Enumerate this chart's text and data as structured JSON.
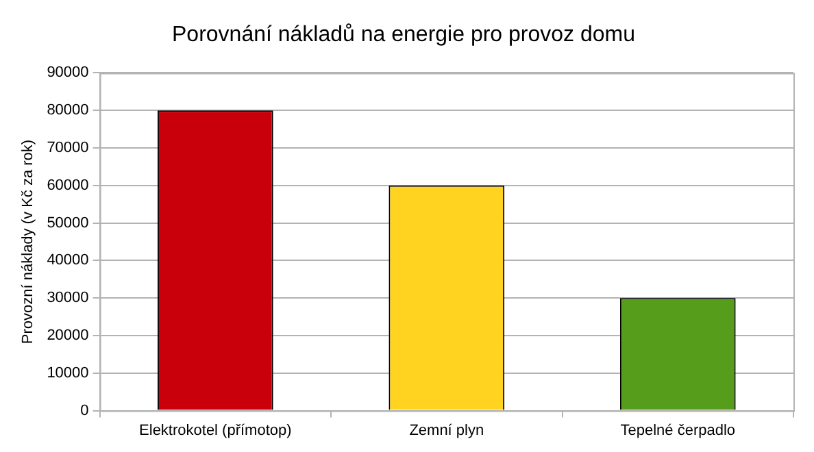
{
  "chart_data": {
    "type": "bar",
    "title": "Porovnání nákladů na energie pro provoz domu",
    "ylabel": "Provozní náklady (v Kč za rok)",
    "categories": [
      "Elektrokotel (přímotop)",
      "Zemní plyn",
      "Tepelné čerpadlo"
    ],
    "values": [
      80000,
      60000,
      30000
    ],
    "colors": [
      "#c9000b",
      "#ffd320",
      "#579d1c"
    ],
    "ylim": [
      0,
      90000
    ],
    "yticks": [
      0,
      10000,
      20000,
      30000,
      40000,
      50000,
      60000,
      70000,
      80000,
      90000
    ],
    "grid": "y",
    "legend": false
  }
}
